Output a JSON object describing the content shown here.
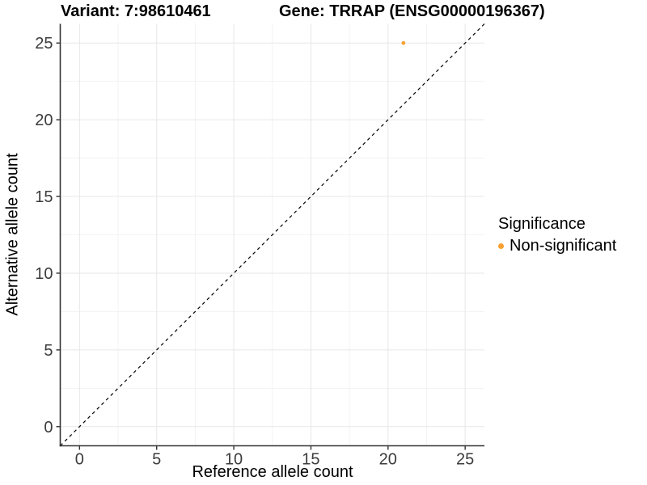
{
  "chart_data": {
    "type": "scatter",
    "titles": [
      "Variant: 7:98610461",
      "Gene: TRRAP (ENSG00000196367)"
    ],
    "xlabel": "Reference allele count",
    "ylabel": "Alternative allele count",
    "xlim": [
      -1.25,
      26.25
    ],
    "ylim": [
      -1.25,
      26.25
    ],
    "xticks": [
      0,
      5,
      10,
      15,
      20,
      25
    ],
    "yticks": [
      0,
      5,
      10,
      15,
      20,
      25
    ],
    "minor_ticks": [
      2.5,
      7.5,
      12.5,
      17.5,
      22.5
    ],
    "grid": "major and minor, light gray on white",
    "points": [
      {
        "x": 21,
        "y": 25,
        "series": "Non-significant"
      }
    ],
    "reference_line": {
      "type": "abline",
      "intercept": 0,
      "slope": 1,
      "style": "dashed"
    },
    "legend": {
      "title": "Significance",
      "position": "right",
      "items": [
        {
          "label": "Non-significant",
          "color": "#F8A132"
        }
      ]
    },
    "colors": {
      "point": "#F8A132",
      "reference_line": "#000000",
      "grid_major": "#E7E7E7",
      "grid_minor": "#F3F3F3",
      "axis_line": "#333333",
      "tick_text": "#3C3C3C",
      "title_text": "#000000"
    }
  }
}
